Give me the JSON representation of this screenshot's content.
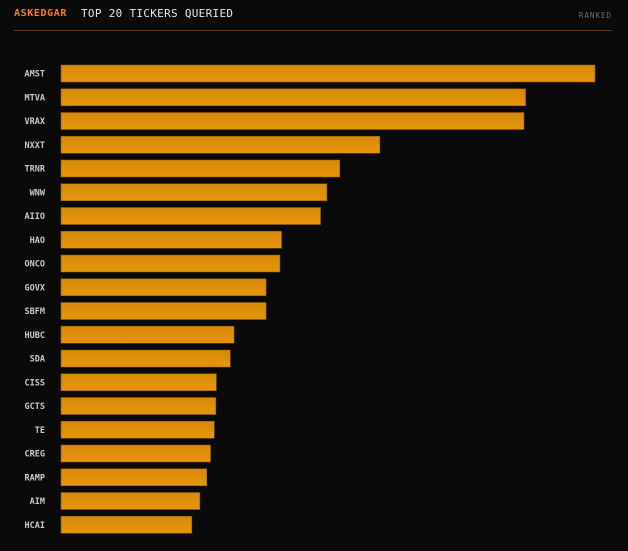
{
  "header": {
    "brand": "ASKEDGAR",
    "title": "TOP 20 TICKERS QUERIED",
    "tag": "RANKED"
  },
  "colors": {
    "accent": "#ff7a1a",
    "bar_top": "#d58a0a",
    "bar_bottom": "#e8960a",
    "bar_edge": "#8a5a08",
    "background": "#0a0a0b",
    "divider": "#5a3a10"
  },
  "chart_data": {
    "type": "bar",
    "orientation": "horizontal",
    "categories": [
      "AMST",
      "MTVA",
      "VRAX",
      "NXXT",
      "TRNR",
      "WNW",
      "AIIO",
      "HAO",
      "ONCO",
      "GOVX",
      "SBFM",
      "HUBC",
      "SDA",
      "CISS",
      "GCTS",
      "TE",
      "CREG",
      "RAMP",
      "AIM",
      "HCAI"
    ],
    "values": [
      100,
      87,
      86.7,
      59.7,
      52.2,
      49.8,
      48.6,
      41.3,
      41,
      38.4,
      38.4,
      32.4,
      31.7,
      29.1,
      29,
      28.7,
      28,
      27.3,
      26,
      24.5
    ],
    "title": "TOP 20 TICKERS QUERIED",
    "xlabel": "",
    "ylabel": "",
    "xlim": [
      0,
      100
    ],
    "grid": false,
    "legend": "none"
  }
}
